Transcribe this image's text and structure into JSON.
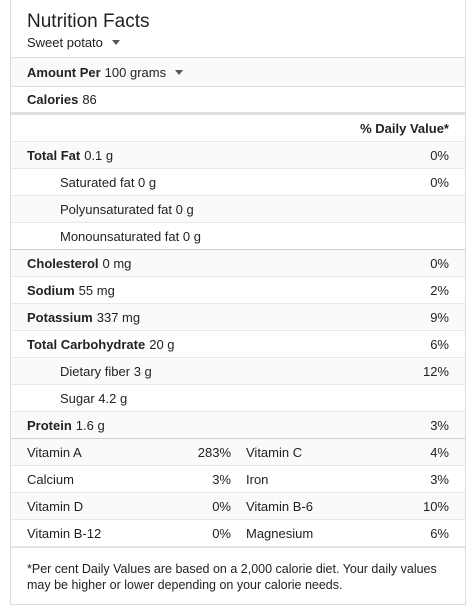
{
  "header": {
    "title": "Nutrition Facts",
    "food": "Sweet potato"
  },
  "serving": {
    "label": "Amount Per",
    "value": "100 grams"
  },
  "calories": {
    "label": "Calories",
    "value": "86"
  },
  "dv_header": "% Daily Value*",
  "nutrients": {
    "total_fat": {
      "label": "Total Fat",
      "amount": "0.1 g",
      "pct": "0%"
    },
    "saturated_fat": {
      "label": "Saturated fat 0 g",
      "pct": "0%"
    },
    "polyunsaturated_fat": {
      "label": "Polyunsaturated fat 0 g"
    },
    "monounsaturated_fat": {
      "label": "Monounsaturated fat 0 g"
    },
    "cholesterol": {
      "label": "Cholesterol",
      "amount": "0 mg",
      "pct": "0%"
    },
    "sodium": {
      "label": "Sodium",
      "amount": "55 mg",
      "pct": "2%"
    },
    "potassium": {
      "label": "Potassium",
      "amount": "337 mg",
      "pct": "9%"
    },
    "total_carbohydrate": {
      "label": "Total Carbohydrate",
      "amount": "20 g",
      "pct": "6%"
    },
    "dietary_fiber": {
      "label": "Dietary fiber 3 g",
      "pct": "12%"
    },
    "sugar": {
      "label": "Sugar 4.2 g"
    },
    "protein": {
      "label": "Protein",
      "amount": "1.6 g",
      "pct": "3%"
    }
  },
  "vitamins": [
    {
      "name1": "Vitamin A",
      "val1": "283%",
      "name2": "Vitamin C",
      "val2": "4%"
    },
    {
      "name1": "Calcium",
      "val1": "3%",
      "name2": "Iron",
      "val2": "3%"
    },
    {
      "name1": "Vitamin D",
      "val1": "0%",
      "name2": "Vitamin B-6",
      "val2": "10%"
    },
    {
      "name1": "Vitamin B-12",
      "val1": "0%",
      "name2": "Magnesium",
      "val2": "6%"
    }
  ],
  "footnote": "*Per cent Daily Values are based on a 2,000 calorie diet. Your daily values may be higher or lower depending on your calorie needs."
}
